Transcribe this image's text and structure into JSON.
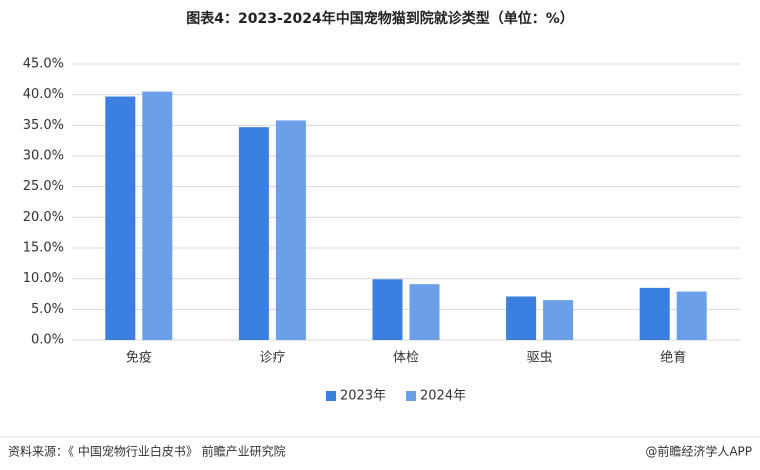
{
  "chart_data": {
    "type": "bar",
    "title": "图表4：2023-2024年中国宠物猫到院就诊类型（单位：%）",
    "categories": [
      "免疫",
      "诊疗",
      "体检",
      "驱虫",
      "绝育"
    ],
    "series": [
      {
        "name": "2023年",
        "color": "#3b7fe0",
        "values": [
          39.7,
          34.7,
          9.9,
          7.1,
          8.5
        ]
      },
      {
        "name": "2024年",
        "color": "#6b9fe8",
        "values": [
          40.5,
          35.8,
          9.1,
          6.5,
          7.9
        ]
      }
    ],
    "ylim": [
      0,
      45
    ],
    "yticks": [
      {
        "value": 0,
        "label": "0.0%"
      },
      {
        "value": 5,
        "label": "5.0%"
      },
      {
        "value": 10,
        "label": "10.0%"
      },
      {
        "value": 15,
        "label": "15.0%"
      },
      {
        "value": 20,
        "label": "20.0%"
      },
      {
        "value": 25,
        "label": "25.0%"
      },
      {
        "value": 30,
        "label": "30.0%"
      },
      {
        "value": 35,
        "label": "35.0%"
      },
      {
        "value": 40,
        "label": "40.0%"
      },
      {
        "value": 45,
        "label": "45.0%"
      }
    ],
    "grid": true,
    "legend": "bottom",
    "source": "资料来源：《 中国宠物行业白皮书》 前瞻产业研究院",
    "credit": "@前瞻经济学人APP"
  }
}
